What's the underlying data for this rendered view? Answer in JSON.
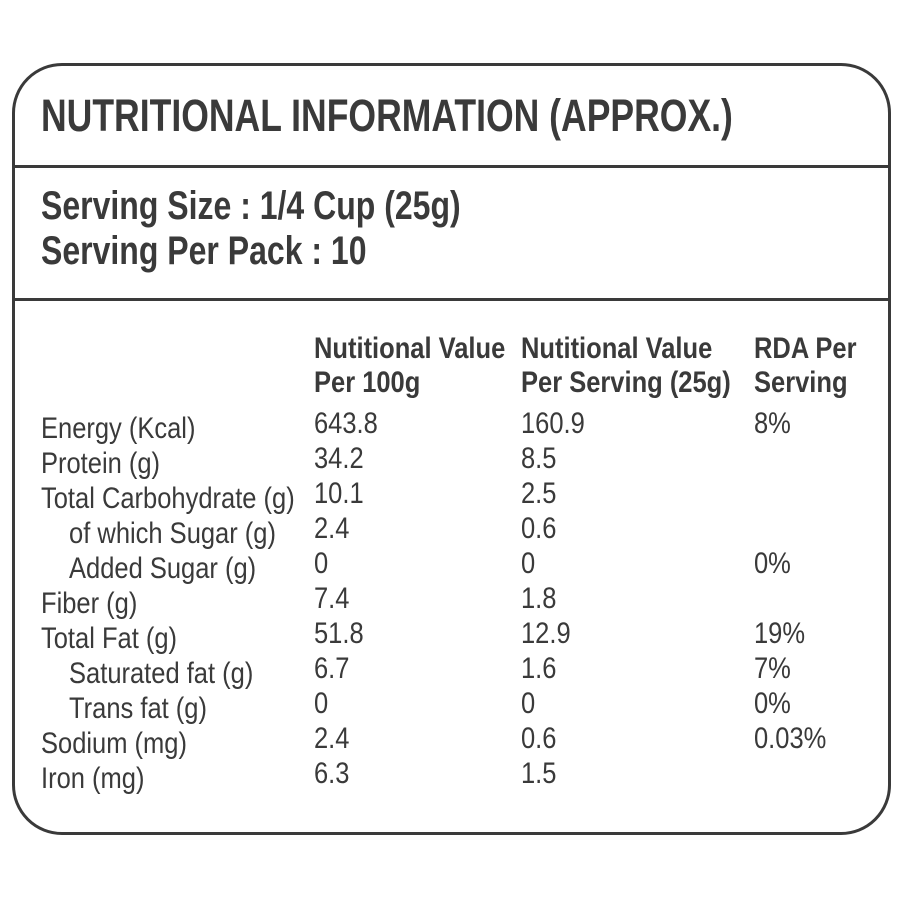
{
  "colors": {
    "background": "#ffffff",
    "text": "#3a3a3a",
    "border": "#3a3a3a"
  },
  "title": "NUTRITIONAL INFORMATION (APPROX.)",
  "serving": {
    "size_line": "Serving Size : 1/4 Cup (25g)",
    "per_pack_line": "Serving Per Pack : 10"
  },
  "table": {
    "headers": {
      "per_100g": {
        "line1": "Nutitional Value",
        "line2": "Per 100g"
      },
      "per_serving": {
        "line1": "Nutitional Value",
        "line2": "Per Serving (25g)"
      },
      "rda": {
        "line1": "RDA Per",
        "line2": "Serving"
      }
    },
    "rows": [
      {
        "label": "Energy (Kcal)",
        "indent": false,
        "per_100g": "643.8",
        "per_serving": "160.9",
        "rda": "8%"
      },
      {
        "label": "Protein (g)",
        "indent": false,
        "per_100g": "34.2",
        "per_serving": "8.5",
        "rda": ""
      },
      {
        "label": "Total Carbohydrate (g)",
        "indent": false,
        "per_100g": "10.1",
        "per_serving": "2.5",
        "rda": ""
      },
      {
        "label": "of which Sugar (g)",
        "indent": true,
        "per_100g": "2.4",
        "per_serving": "0.6",
        "rda": ""
      },
      {
        "label": "Added Sugar (g)",
        "indent": true,
        "per_100g": "0",
        "per_serving": "0",
        "rda": "0%"
      },
      {
        "label": "Fiber (g)",
        "indent": false,
        "per_100g": "7.4",
        "per_serving": "1.8",
        "rda": ""
      },
      {
        "label": "Total Fat (g)",
        "indent": false,
        "per_100g": "51.8",
        "per_serving": "12.9",
        "rda": "19%"
      },
      {
        "label": "Saturated fat (g)",
        "indent": true,
        "per_100g": "6.7",
        "per_serving": "1.6",
        "rda": "7%"
      },
      {
        "label": "Trans fat (g)",
        "indent": true,
        "per_100g": "0",
        "per_serving": "0",
        "rda": "0%"
      },
      {
        "label": "Sodium (mg)",
        "indent": false,
        "per_100g": "2.4",
        "per_serving": "0.6",
        "rda": "0.03%"
      },
      {
        "label": "Iron (mg)",
        "indent": false,
        "per_100g": "6.3",
        "per_serving": "1.5",
        "rda": ""
      }
    ]
  }
}
